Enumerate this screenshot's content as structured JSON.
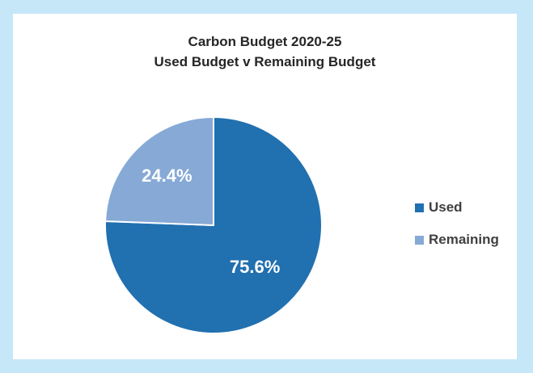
{
  "chart_data": {
    "type": "pie",
    "title": "Carbon Budget 2020-25",
    "subtitle": "Used Budget v Remaining Budget",
    "slices": [
      {
        "name": "Used",
        "value": 75.6,
        "label": "75.6%",
        "color": "#2170b0"
      },
      {
        "name": "Remaining",
        "value": 24.4,
        "label": "24.4%",
        "color": "#86a9d6"
      }
    ],
    "legend_position": "right"
  }
}
